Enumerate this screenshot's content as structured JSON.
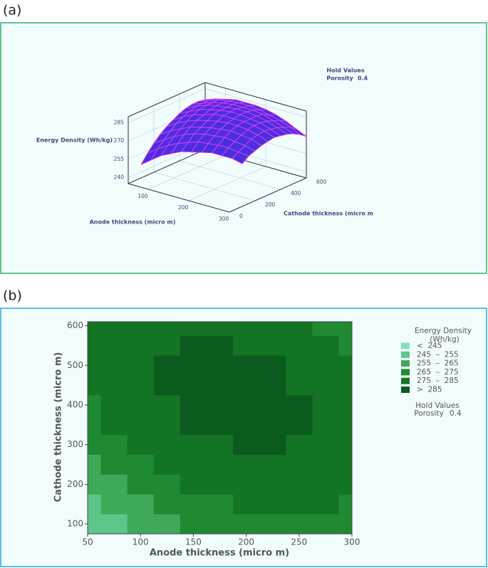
{
  "chart_data": [
    {
      "type": "surface",
      "panel_label": "(a)",
      "xlabel": "Anode thickness (micro m)",
      "ylabel": "Cathode thickness (micro m",
      "zlabel": "Energy Density (Wh/kg)",
      "annotation": {
        "title": "Hold Values",
        "name": "Porosity",
        "value": 0.4
      },
      "xlim": [
        50,
        300
      ],
      "ylim": [
        0,
        600
      ],
      "zlim": [
        235,
        290
      ],
      "xticks": [
        100,
        200,
        300
      ],
      "yticks": [
        0,
        200,
        400,
        600
      ],
      "zticks": [
        240,
        255,
        270,
        285
      ],
      "color": "#4a2fe0",
      "edge_color": "#e23ff2",
      "x": [
        50,
        75,
        100,
        125,
        150,
        175,
        200,
        225,
        250,
        275,
        300
      ],
      "y": [
        100,
        150,
        200,
        250,
        300,
        350,
        400,
        450,
        500,
        550,
        600
      ],
      "z": [
        [
          246,
          252,
          258,
          262,
          266,
          268,
          270,
          272,
          272,
          272,
          270
        ],
        [
          253,
          259,
          264,
          268,
          271,
          274,
          275,
          276,
          276,
          275,
          274
        ],
        [
          259,
          264,
          269,
          273,
          276,
          278,
          279,
          280,
          279,
          278,
          276
        ],
        [
          264,
          269,
          273,
          277,
          279,
          281,
          282,
          283,
          282,
          281,
          278
        ],
        [
          268,
          273,
          277,
          280,
          282,
          284,
          285,
          285,
          284,
          282,
          279
        ],
        [
          271,
          276,
          280,
          282,
          285,
          286,
          286,
          286,
          285,
          283,
          280
        ],
        [
          274,
          278,
          282,
          284,
          286,
          287,
          287,
          286,
          285,
          282,
          279
        ],
        [
          276,
          280,
          283,
          285,
          286,
          287,
          287,
          286,
          284,
          281,
          278
        ],
        [
          277,
          280,
          283,
          285,
          286,
          286,
          286,
          285,
          282,
          279,
          276
        ],
        [
          277,
          280,
          283,
          284,
          285,
          285,
          284,
          282,
          280,
          277,
          273
        ],
        [
          276,
          279,
          281,
          283,
          283,
          283,
          282,
          280,
          277,
          273,
          269
        ]
      ]
    },
    {
      "type": "contour",
      "panel_label": "(b)",
      "xlabel": "Anode thickness (micro m)",
      "ylabel": "Cathode thickness (micro m)",
      "legend_title": [
        "Energy Density",
        "(Wh/kg)"
      ],
      "legend_labels": [
        "<  245",
        "245  –  255",
        "255  –  265",
        "265  –  275",
        "275  –  285",
        ">  285"
      ],
      "levels": [
        245,
        255,
        265,
        275,
        285
      ],
      "colors": [
        "#86dcbc",
        "#5cc58a",
        "#3fa95a",
        "#1f8a32",
        "#137424",
        "#0b5a1e"
      ],
      "annotation": {
        "title": "Hold Values",
        "name": "Porosity",
        "value": 0.4
      },
      "xlim": [
        50,
        300
      ],
      "ylim": [
        75,
        610
      ],
      "xticks": [
        50,
        100,
        150,
        200,
        250,
        300
      ],
      "yticks": [
        100,
        200,
        300,
        400,
        500,
        600
      ],
      "x": [
        50,
        75,
        100,
        125,
        150,
        175,
        200,
        225,
        250,
        275,
        300
      ],
      "y": [
        100,
        150,
        200,
        250,
        300,
        350,
        400,
        450,
        500,
        550,
        600
      ],
      "z": [
        [
          246,
          252,
          258,
          262,
          266,
          268,
          270,
          272,
          272,
          272,
          270
        ],
        [
          253,
          259,
          264,
          268,
          271,
          274,
          275,
          276,
          276,
          275,
          274
        ],
        [
          259,
          264,
          269,
          273,
          276,
          278,
          279,
          280,
          279,
          278,
          276
        ],
        [
          264,
          269,
          273,
          277,
          279,
          281,
          282,
          283,
          282,
          281,
          278
        ],
        [
          268,
          273,
          277,
          280,
          282,
          284,
          285,
          285,
          284,
          282,
          279
        ],
        [
          271,
          276,
          280,
          282,
          285,
          286,
          286,
          286,
          285,
          283,
          280
        ],
        [
          274,
          278,
          282,
          284,
          286,
          287,
          287,
          286,
          285,
          282,
          279
        ],
        [
          276,
          280,
          283,
          285,
          286,
          287,
          287,
          286,
          284,
          281,
          278
        ],
        [
          277,
          280,
          283,
          285,
          286,
          286,
          286,
          285,
          282,
          279,
          276
        ],
        [
          277,
          280,
          283,
          284,
          285,
          285,
          284,
          282,
          280,
          277,
          273
        ],
        [
          276,
          279,
          281,
          283,
          283,
          283,
          282,
          280,
          277,
          273,
          269
        ]
      ]
    }
  ]
}
